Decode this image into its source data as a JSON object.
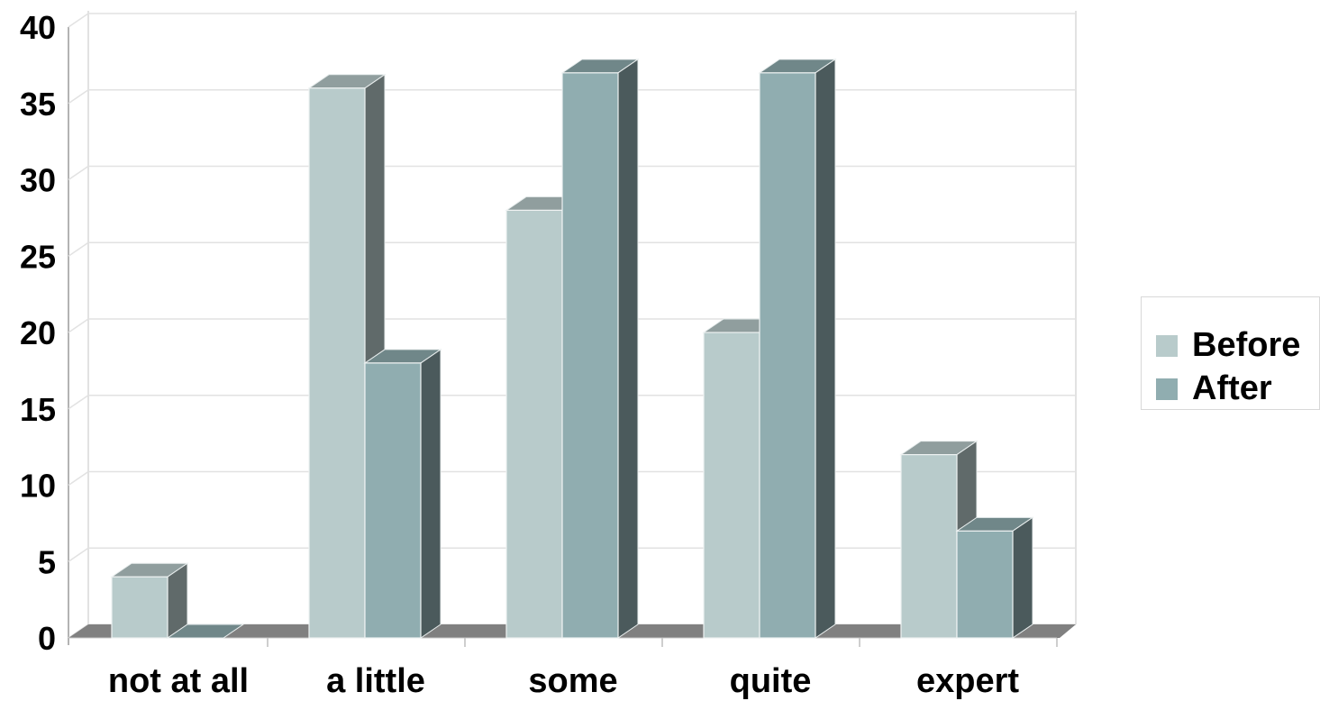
{
  "chart_data": {
    "type": "bar",
    "categories": [
      "not at all",
      "a little",
      "some",
      "quite",
      "expert"
    ],
    "series": [
      {
        "name": "Before",
        "values": [
          4,
          36,
          28,
          20,
          12
        ],
        "color": "#b8cbcb"
      },
      {
        "name": "After",
        "values": [
          0,
          18,
          37,
          37,
          7
        ],
        "color": "#90adb0"
      }
    ],
    "ylim": [
      0,
      40
    ],
    "yticks": [
      "0",
      "5",
      "10",
      "15",
      "20",
      "25",
      "30",
      "35",
      "40"
    ],
    "grid": true,
    "legend_position": "right",
    "style": "3d-clustered-column"
  }
}
